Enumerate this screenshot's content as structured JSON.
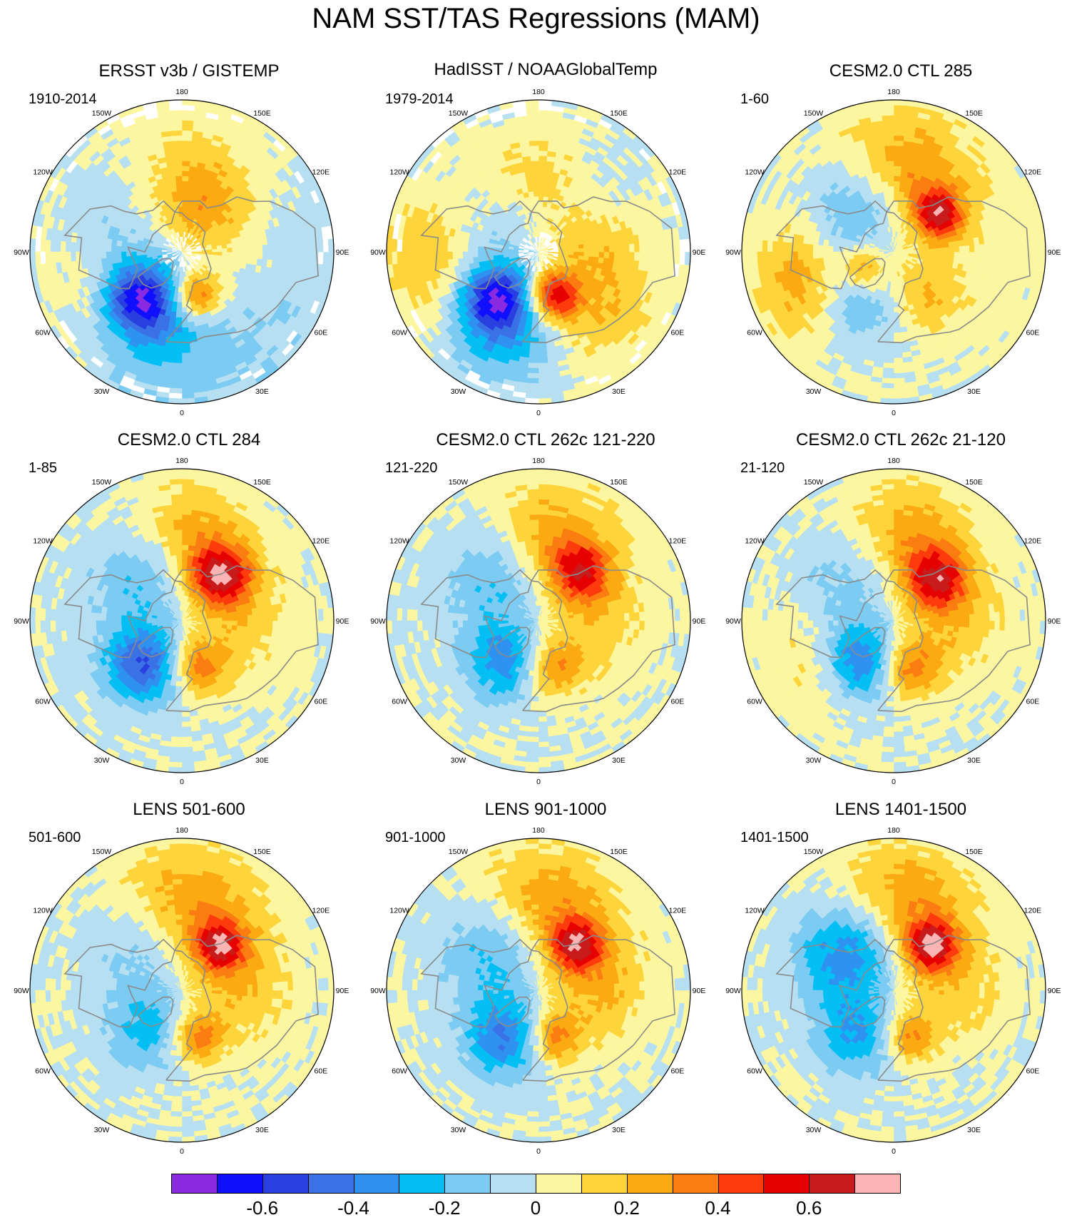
{
  "title": "NAM SST/TAS Regressions (MAM)",
  "longitude_labels": {
    "top": "180",
    "upper_left": "150W",
    "upper_right": "150E",
    "mid_upper_left": "120W",
    "mid_upper_right": "120E",
    "left": "90W",
    "right": "90E",
    "mid_lower_left": "60W",
    "mid_lower_right": "60E",
    "lower_left": "30W",
    "lower_right": "30E",
    "bottom": "0"
  },
  "colors": {
    "background": "#ffffff",
    "coastline": "#8a8a8a",
    "missing": "#ffffff",
    "levels": [
      "#8a2be2",
      "#1010ff",
      "#2a3fe0",
      "#3a72e6",
      "#2f92f0",
      "#04bff4",
      "#7ccbf2",
      "#b6e0f2",
      "#fdf6a0",
      "#fdd53a",
      "#fbaa12",
      "#fb7d12",
      "#fd3b0c",
      "#e60000",
      "#c81c1c",
      "#fbb4b4"
    ]
  },
  "chart_data": {
    "type": "heatmap",
    "projection": "north-polar-stereographic",
    "variable": "SST/TAS regression on NAM index",
    "season": "MAM",
    "colorbar": {
      "levels": [
        -0.7,
        -0.6,
        -0.5,
        -0.4,
        -0.3,
        -0.2,
        -0.1,
        0,
        0.1,
        0.2,
        0.3,
        0.4,
        0.5,
        0.6,
        0.7
      ],
      "tick_labels": [
        "-0.6",
        "-0.4",
        "-0.2",
        "0",
        "0.2",
        "0.4",
        "0.6"
      ],
      "tick_values": [
        -0.6,
        -0.4,
        -0.2,
        0,
        0.2,
        0.4,
        0.6
      ]
    },
    "panels": [
      {
        "title": "ERSST v3b / GISTEMP",
        "period": "1910-2014",
        "missing_data": true,
        "features": [
          {
            "lon": 180,
            "lat": 45,
            "value": 0.12,
            "spread": 30
          },
          {
            "lon": 160,
            "lat": 58,
            "value": 0.18,
            "spread": 20
          },
          {
            "lon": 235,
            "lat": 50,
            "value": -0.12,
            "spread": 25
          },
          {
            "lon": 300,
            "lat": 37,
            "value": 0.2,
            "spread": 20
          },
          {
            "lon": 318,
            "lat": 52,
            "value": -0.55,
            "spread": 14
          },
          {
            "lon": 330,
            "lat": 48,
            "value": -0.3,
            "spread": 26
          },
          {
            "lon": 18,
            "lat": 62,
            "value": 0.45,
            "spread": 10
          },
          {
            "lon": 90,
            "lat": 60,
            "value": 0.08,
            "spread": 30
          },
          {
            "lon": 30,
            "lat": 20,
            "value": -0.1,
            "spread": 30
          },
          {
            "lon": 100,
            "lat": 30,
            "value": -0.08,
            "spread": 30
          }
        ]
      },
      {
        "title": "HadISST / NOAAGlobalTemp",
        "period": "1979-2014",
        "missing_data": true,
        "features": [
          {
            "lon": 175,
            "lat": 42,
            "value": 0.2,
            "spread": 20
          },
          {
            "lon": 150,
            "lat": 40,
            "value": -0.12,
            "spread": 20
          },
          {
            "lon": 280,
            "lat": 30,
            "value": 0.25,
            "spread": 24
          },
          {
            "lon": 318,
            "lat": 52,
            "value": -0.55,
            "spread": 14
          },
          {
            "lon": 330,
            "lat": 40,
            "value": -0.3,
            "spread": 24
          },
          {
            "lon": 18,
            "lat": 62,
            "value": 0.55,
            "spread": 10
          },
          {
            "lon": 90,
            "lat": 58,
            "value": 0.18,
            "spread": 24
          },
          {
            "lon": 40,
            "lat": 35,
            "value": 0.15,
            "spread": 20
          },
          {
            "lon": 250,
            "lat": 60,
            "value": -0.12,
            "spread": 22
          }
        ]
      },
      {
        "title": "CESM2.0 CTL 285",
        "period": "1-60",
        "missing_data": false,
        "features": [
          {
            "lon": 175,
            "lat": 42,
            "value": 0.32,
            "spread": 24
          },
          {
            "lon": 130,
            "lat": 55,
            "value": 0.55,
            "spread": 10
          },
          {
            "lon": 215,
            "lat": 55,
            "value": -0.3,
            "spread": 20
          },
          {
            "lon": 290,
            "lat": 35,
            "value": 0.32,
            "spread": 20
          },
          {
            "lon": 320,
            "lat": 55,
            "value": -0.3,
            "spread": 20
          },
          {
            "lon": 300,
            "lat": 70,
            "value": 0.35,
            "spread": 10
          },
          {
            "lon": 30,
            "lat": 60,
            "value": 0.2,
            "spread": 16
          },
          {
            "lon": 90,
            "lat": 45,
            "value": 0.05,
            "spread": 40
          }
        ]
      },
      {
        "title": "CESM2.0 CTL 284",
        "period": "1-85",
        "missing_data": false,
        "features": [
          {
            "lon": 175,
            "lat": 45,
            "value": 0.32,
            "spread": 24
          },
          {
            "lon": 140,
            "lat": 55,
            "value": 0.55,
            "spread": 12
          },
          {
            "lon": 215,
            "lat": 55,
            "value": -0.3,
            "spread": 22
          },
          {
            "lon": 320,
            "lat": 55,
            "value": -0.5,
            "spread": 16
          },
          {
            "lon": 18,
            "lat": 60,
            "value": 0.35,
            "spread": 12
          },
          {
            "lon": 90,
            "lat": 55,
            "value": 0.15,
            "spread": 22
          }
        ]
      },
      {
        "title": "CESM2.0 CTL 262c 121-220",
        "period": "121-220",
        "missing_data": false,
        "features": [
          {
            "lon": 170,
            "lat": 42,
            "value": 0.3,
            "spread": 24
          },
          {
            "lon": 140,
            "lat": 52,
            "value": 0.4,
            "spread": 12
          },
          {
            "lon": 220,
            "lat": 55,
            "value": -0.25,
            "spread": 22
          },
          {
            "lon": 320,
            "lat": 58,
            "value": -0.35,
            "spread": 16
          },
          {
            "lon": 18,
            "lat": 60,
            "value": 0.3,
            "spread": 12
          },
          {
            "lon": 90,
            "lat": 55,
            "value": 0.15,
            "spread": 22
          }
        ]
      },
      {
        "title": "CESM2.0 CTL 262c 21-120",
        "period": "21-120",
        "missing_data": false,
        "features": [
          {
            "lon": 170,
            "lat": 42,
            "value": 0.3,
            "spread": 24
          },
          {
            "lon": 135,
            "lat": 55,
            "value": 0.45,
            "spread": 12
          },
          {
            "lon": 220,
            "lat": 55,
            "value": -0.2,
            "spread": 22
          },
          {
            "lon": 320,
            "lat": 58,
            "value": -0.45,
            "spread": 16
          },
          {
            "lon": 300,
            "lat": 40,
            "value": 0.15,
            "spread": 20
          },
          {
            "lon": 18,
            "lat": 60,
            "value": 0.35,
            "spread": 12
          },
          {
            "lon": 90,
            "lat": 55,
            "value": 0.18,
            "spread": 22
          }
        ]
      },
      {
        "title": "LENS 501-600",
        "period": "501-600",
        "missing_data": false,
        "features": [
          {
            "lon": 175,
            "lat": 42,
            "value": 0.32,
            "spread": 26
          },
          {
            "lon": 140,
            "lat": 55,
            "value": 0.5,
            "spread": 10
          },
          {
            "lon": 220,
            "lat": 55,
            "value": -0.2,
            "spread": 22
          },
          {
            "lon": 320,
            "lat": 58,
            "value": -0.25,
            "spread": 16
          },
          {
            "lon": 18,
            "lat": 60,
            "value": 0.35,
            "spread": 10
          },
          {
            "lon": 90,
            "lat": 55,
            "value": 0.18,
            "spread": 22
          }
        ]
      },
      {
        "title": "LENS 901-1000",
        "period": "901-1000",
        "missing_data": false,
        "features": [
          {
            "lon": 175,
            "lat": 42,
            "value": 0.32,
            "spread": 26
          },
          {
            "lon": 140,
            "lat": 55,
            "value": 0.5,
            "spread": 10
          },
          {
            "lon": 225,
            "lat": 55,
            "value": -0.3,
            "spread": 22
          },
          {
            "lon": 325,
            "lat": 55,
            "value": -0.4,
            "spread": 16
          },
          {
            "lon": 18,
            "lat": 60,
            "value": 0.35,
            "spread": 10
          },
          {
            "lon": 90,
            "lat": 55,
            "value": 0.2,
            "spread": 22
          }
        ]
      },
      {
        "title": "LENS 1401-1500",
        "period": "1401-1500",
        "missing_data": false,
        "features": [
          {
            "lon": 175,
            "lat": 42,
            "value": 0.34,
            "spread": 26
          },
          {
            "lon": 140,
            "lat": 55,
            "value": 0.55,
            "spread": 10
          },
          {
            "lon": 225,
            "lat": 55,
            "value": -0.45,
            "spread": 22
          },
          {
            "lon": 320,
            "lat": 55,
            "value": -0.3,
            "spread": 16
          },
          {
            "lon": 18,
            "lat": 60,
            "value": 0.3,
            "spread": 10
          },
          {
            "lon": 90,
            "lat": 55,
            "value": 0.15,
            "spread": 22
          }
        ]
      }
    ]
  }
}
